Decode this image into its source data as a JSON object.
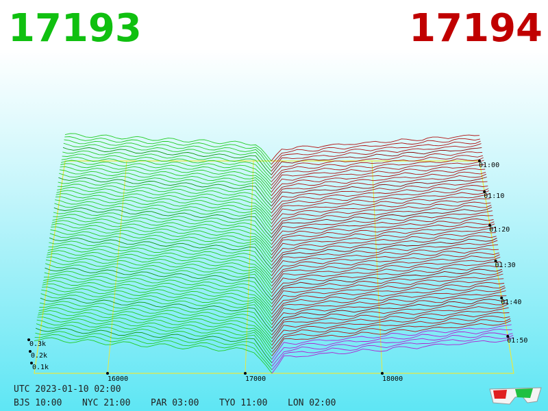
{
  "header": {
    "bid": "17193",
    "ask": "17194"
  },
  "price_axis": [
    "16000",
    "17000",
    "18000"
  ],
  "size_axis": [
    "0.1k",
    "0.2k",
    "0.3k"
  ],
  "time_axis": [
    "01:00",
    "01:10",
    "01:20",
    "01:30",
    "01:40",
    "01:50"
  ],
  "footer": {
    "utc": "UTC 2023-01-10 02:00",
    "clocks": [
      "BJS 10:00",
      "NYC 21:00",
      "PAR 03:00",
      "TYO 11:00",
      "LON 02:00"
    ]
  }
}
